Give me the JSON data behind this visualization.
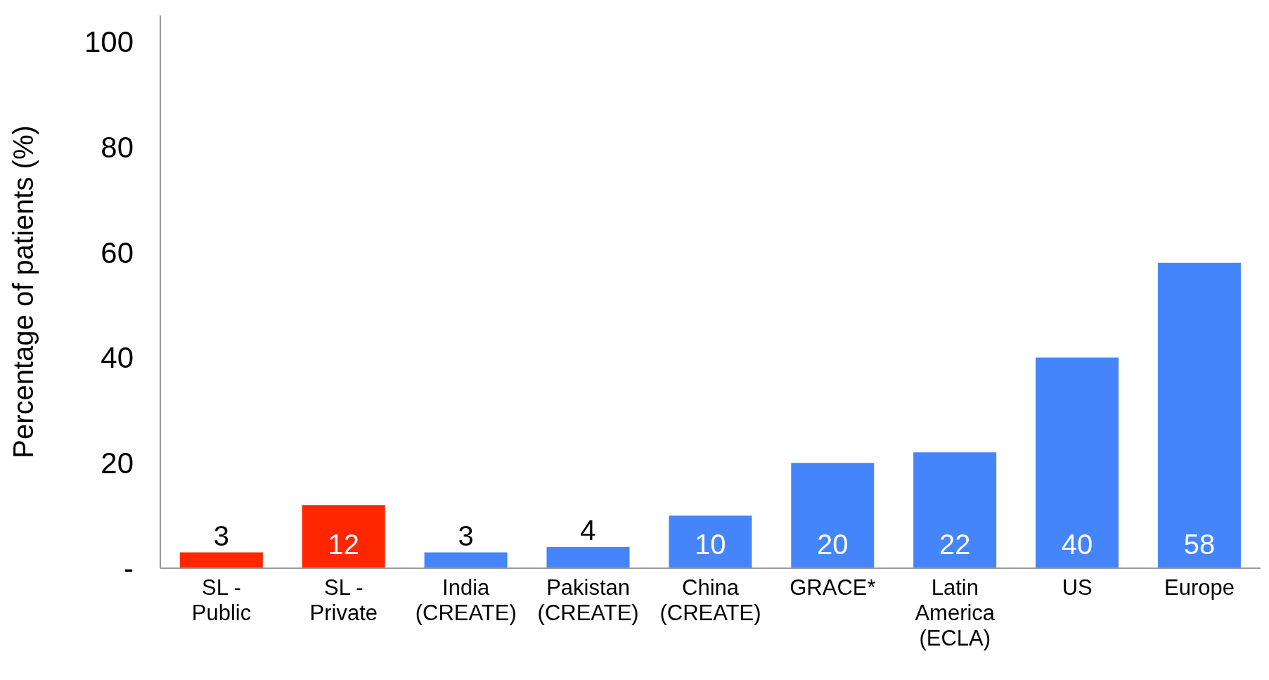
{
  "chart_data": {
    "type": "bar",
    "ylabel": "Percentage of patients (%)",
    "categories": [
      "SL - Public",
      "SL - Private",
      "India (CREATE)",
      "Pakistan (CREATE)",
      "China (CREATE)",
      "GRACE*",
      "Latin America (ECLA)",
      "US",
      "Europe"
    ],
    "values": [
      3,
      12,
      3,
      4,
      10,
      20,
      22,
      40,
      58
    ],
    "colors": [
      "#ff2600",
      "#ff2600",
      "#4585fb",
      "#4585fb",
      "#4585fb",
      "#4585fb",
      "#4585fb",
      "#4585fb",
      "#4585fb"
    ],
    "ylim": [
      0,
      105
    ],
    "yticks": [
      {
        "value": 0,
        "label": "-"
      },
      20,
      40,
      60,
      80,
      100
    ],
    "data_labels": true,
    "grid": false,
    "legend": false
  }
}
